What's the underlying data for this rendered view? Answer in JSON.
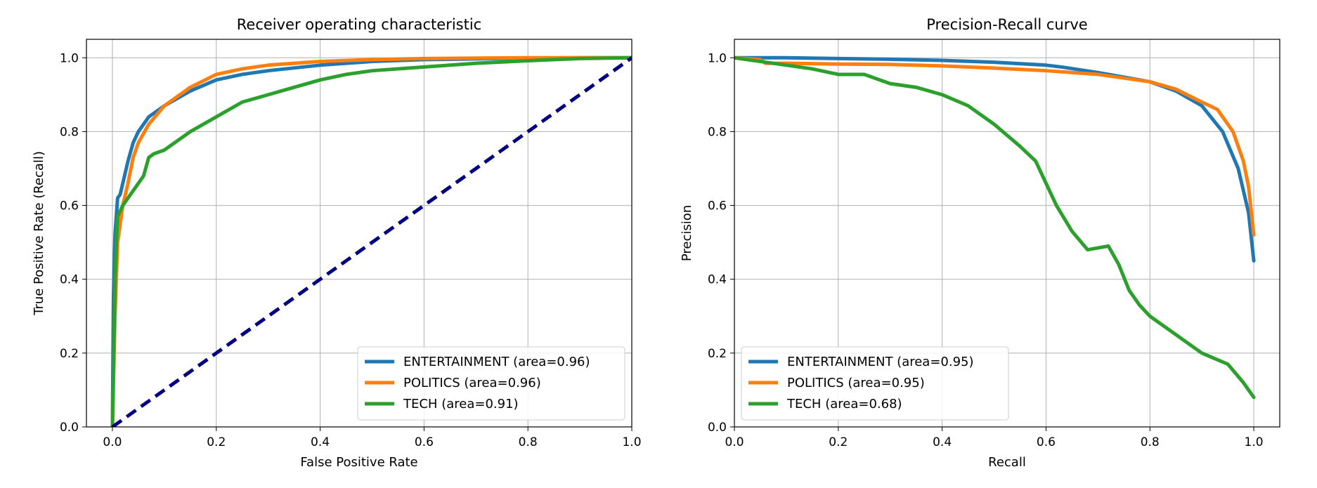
{
  "chart_data": [
    {
      "type": "line",
      "title": "Receiver operating characteristic",
      "xlabel": "False Positive Rate",
      "ylabel": "True Positive Rate (Recall)",
      "xlim": [
        -0.05,
        1.0
      ],
      "ylim": [
        0.0,
        1.05
      ],
      "xticks": [
        0.0,
        0.2,
        0.4,
        0.6,
        0.8,
        1.0
      ],
      "yticks": [
        0.0,
        0.2,
        0.4,
        0.6,
        0.8,
        1.0
      ],
      "xtick_labels": [
        "0.0",
        "0.2",
        "0.4",
        "0.6",
        "0.8",
        "1.0"
      ],
      "ytick_labels": [
        "0.0",
        "0.2",
        "0.4",
        "0.6",
        "0.8",
        "1.0"
      ],
      "grid": true,
      "legend_position": "lower-right",
      "series": [
        {
          "name": "ENTERTAINMENT (area=0.96)",
          "color": "#1f77b4",
          "x": [
            0.0,
            0.002,
            0.005,
            0.01,
            0.015,
            0.02,
            0.03,
            0.04,
            0.05,
            0.07,
            0.1,
            0.15,
            0.2,
            0.25,
            0.3,
            0.4,
            0.5,
            0.6,
            0.7,
            0.8,
            0.9,
            1.0
          ],
          "y": [
            0.0,
            0.35,
            0.52,
            0.62,
            0.63,
            0.66,
            0.72,
            0.77,
            0.8,
            0.84,
            0.87,
            0.91,
            0.94,
            0.955,
            0.965,
            0.98,
            0.99,
            0.995,
            0.997,
            0.999,
            1.0,
            1.0
          ]
        },
        {
          "name": "POLITICS (area=0.96)",
          "color": "#ff7f0e",
          "x": [
            0.0,
            0.005,
            0.01,
            0.02,
            0.03,
            0.04,
            0.05,
            0.07,
            0.1,
            0.15,
            0.2,
            0.25,
            0.3,
            0.4,
            0.5,
            0.6,
            0.7,
            0.8,
            0.9,
            1.0
          ],
          "y": [
            0.0,
            0.3,
            0.5,
            0.6,
            0.66,
            0.73,
            0.77,
            0.82,
            0.87,
            0.92,
            0.955,
            0.97,
            0.98,
            0.99,
            0.995,
            0.998,
            0.999,
            1.0,
            1.0,
            1.0
          ]
        },
        {
          "name": "TECH (area=0.91)",
          "color": "#2ca02c",
          "x": [
            0.0,
            0.005,
            0.01,
            0.02,
            0.03,
            0.04,
            0.05,
            0.06,
            0.07,
            0.08,
            0.1,
            0.12,
            0.15,
            0.2,
            0.25,
            0.3,
            0.35,
            0.4,
            0.45,
            0.5,
            0.6,
            0.7,
            0.8,
            0.9,
            1.0
          ],
          "y": [
            0.0,
            0.4,
            0.57,
            0.6,
            0.62,
            0.64,
            0.66,
            0.68,
            0.73,
            0.74,
            0.75,
            0.77,
            0.8,
            0.84,
            0.88,
            0.9,
            0.92,
            0.94,
            0.955,
            0.965,
            0.975,
            0.985,
            0.992,
            0.998,
            1.0
          ]
        },
        {
          "name": "",
          "color": "#000080",
          "dashed": true,
          "x": [
            0.0,
            1.0
          ],
          "y": [
            0.0,
            1.0
          ]
        }
      ]
    },
    {
      "type": "line",
      "title": "Precision-Recall curve",
      "xlabel": "Recall",
      "ylabel": "Precision",
      "xlim": [
        0.0,
        1.05
      ],
      "ylim": [
        0.0,
        1.05
      ],
      "xticks": [
        0.0,
        0.2,
        0.4,
        0.6,
        0.8,
        1.0
      ],
      "yticks": [
        0.0,
        0.2,
        0.4,
        0.6,
        0.8,
        1.0
      ],
      "xtick_labels": [
        "0.0",
        "0.2",
        "0.4",
        "0.6",
        "0.8",
        "1.0"
      ],
      "ytick_labels": [
        "0.0",
        "0.2",
        "0.4",
        "0.6",
        "0.8",
        "1.0"
      ],
      "grid": true,
      "legend_position": "lower-left",
      "series": [
        {
          "name": "ENTERTAINMENT (area=0.95)",
          "color": "#1f77b4",
          "x": [
            0.0,
            0.05,
            0.1,
            0.2,
            0.3,
            0.4,
            0.5,
            0.6,
            0.63,
            0.7,
            0.8,
            0.85,
            0.9,
            0.94,
            0.97,
            0.99,
            1.0
          ],
          "y": [
            1.0,
            1.0,
            1.0,
            0.998,
            0.996,
            0.993,
            0.988,
            0.98,
            0.975,
            0.96,
            0.935,
            0.91,
            0.87,
            0.8,
            0.7,
            0.58,
            0.45
          ]
        },
        {
          "name": "POLITICS (area=0.95)",
          "color": "#ff7f0e",
          "x": [
            0.0,
            0.05,
            0.06,
            0.1,
            0.2,
            0.3,
            0.4,
            0.5,
            0.6,
            0.7,
            0.8,
            0.85,
            0.9,
            0.93,
            0.96,
            0.98,
            0.99,
            1.0
          ],
          "y": [
            1.0,
            0.995,
            0.985,
            0.985,
            0.983,
            0.982,
            0.978,
            0.972,
            0.965,
            0.955,
            0.935,
            0.915,
            0.88,
            0.86,
            0.8,
            0.72,
            0.65,
            0.52
          ]
        },
        {
          "name": "TECH (area=0.68)",
          "color": "#2ca02c",
          "x": [
            0.0,
            0.05,
            0.1,
            0.15,
            0.2,
            0.25,
            0.3,
            0.35,
            0.4,
            0.45,
            0.5,
            0.55,
            0.58,
            0.6,
            0.62,
            0.65,
            0.68,
            0.72,
            0.74,
            0.76,
            0.78,
            0.8,
            0.85,
            0.9,
            0.95,
            0.98,
            1.0
          ],
          "y": [
            1.0,
            0.99,
            0.98,
            0.97,
            0.955,
            0.955,
            0.93,
            0.92,
            0.9,
            0.87,
            0.82,
            0.76,
            0.72,
            0.66,
            0.6,
            0.53,
            0.48,
            0.49,
            0.44,
            0.37,
            0.33,
            0.3,
            0.25,
            0.2,
            0.17,
            0.12,
            0.08
          ]
        }
      ]
    }
  ]
}
